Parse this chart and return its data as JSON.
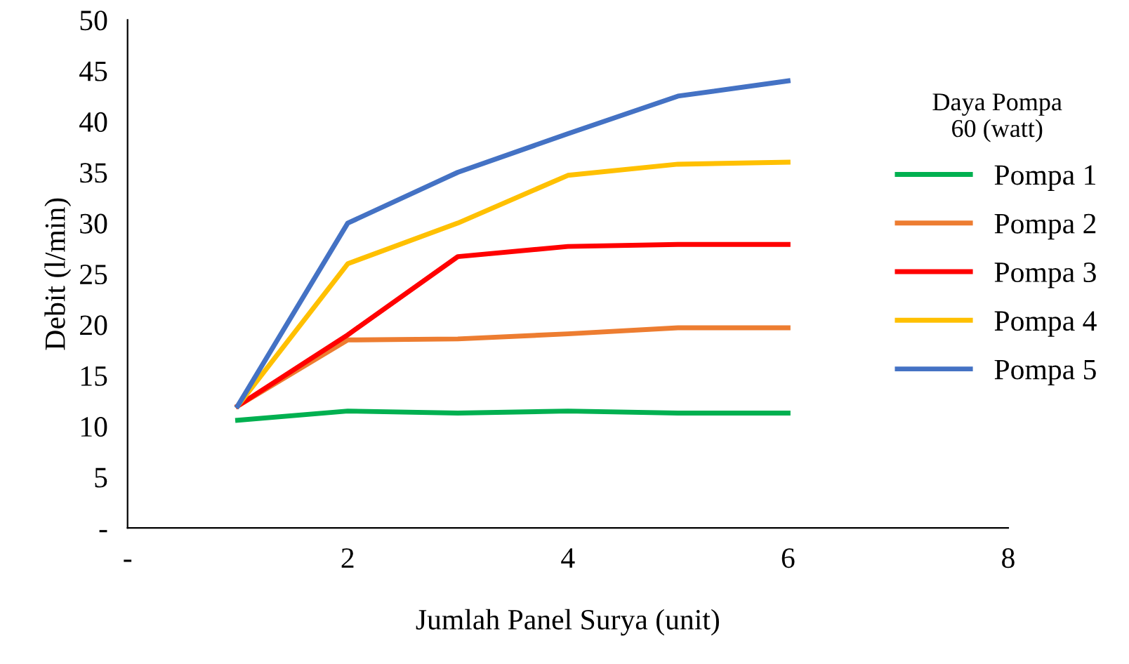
{
  "chart_data": {
    "type": "line",
    "xlabel": "Jumlah Panel Surya (unit)",
    "ylabel": "Debit (l/min)",
    "legend_title": "Daya Pompa\n60 (watt)",
    "x": [
      1,
      2,
      3,
      4,
      5,
      6
    ],
    "series": [
      {
        "name": "Pompa 1",
        "color": "#00b050",
        "values": [
          10.6,
          11.5,
          11.3,
          11.5,
          11.3,
          11.3
        ]
      },
      {
        "name": "Pompa 2",
        "color": "#ed7d31",
        "values": [
          12,
          18.5,
          18.6,
          19.1,
          19.7,
          19.7
        ]
      },
      {
        "name": "Pompa 3",
        "color": "#ff0000",
        "values": [
          12,
          19,
          26.7,
          27.7,
          27.9,
          27.9
        ]
      },
      {
        "name": "Pompa 4",
        "color": "#ffc000",
        "values": [
          12,
          26,
          30,
          34.7,
          35.8,
          36
        ]
      },
      {
        "name": "Pompa 5",
        "color": "#4472c4",
        "values": [
          12,
          30,
          35,
          38.8,
          42.5,
          44
        ]
      }
    ],
    "xlim": [
      0,
      8
    ],
    "xticks": [
      {
        "value": 0,
        "label": "-"
      },
      2,
      4,
      6,
      8
    ],
    "ylim": [
      0,
      50
    ],
    "yticks": [
      {
        "value": 0,
        "label": "-"
      },
      5,
      10,
      15,
      20,
      25,
      30,
      35,
      40,
      45,
      50
    ],
    "grid": false,
    "legend": "right",
    "marker": "none",
    "line_style": "solid"
  }
}
